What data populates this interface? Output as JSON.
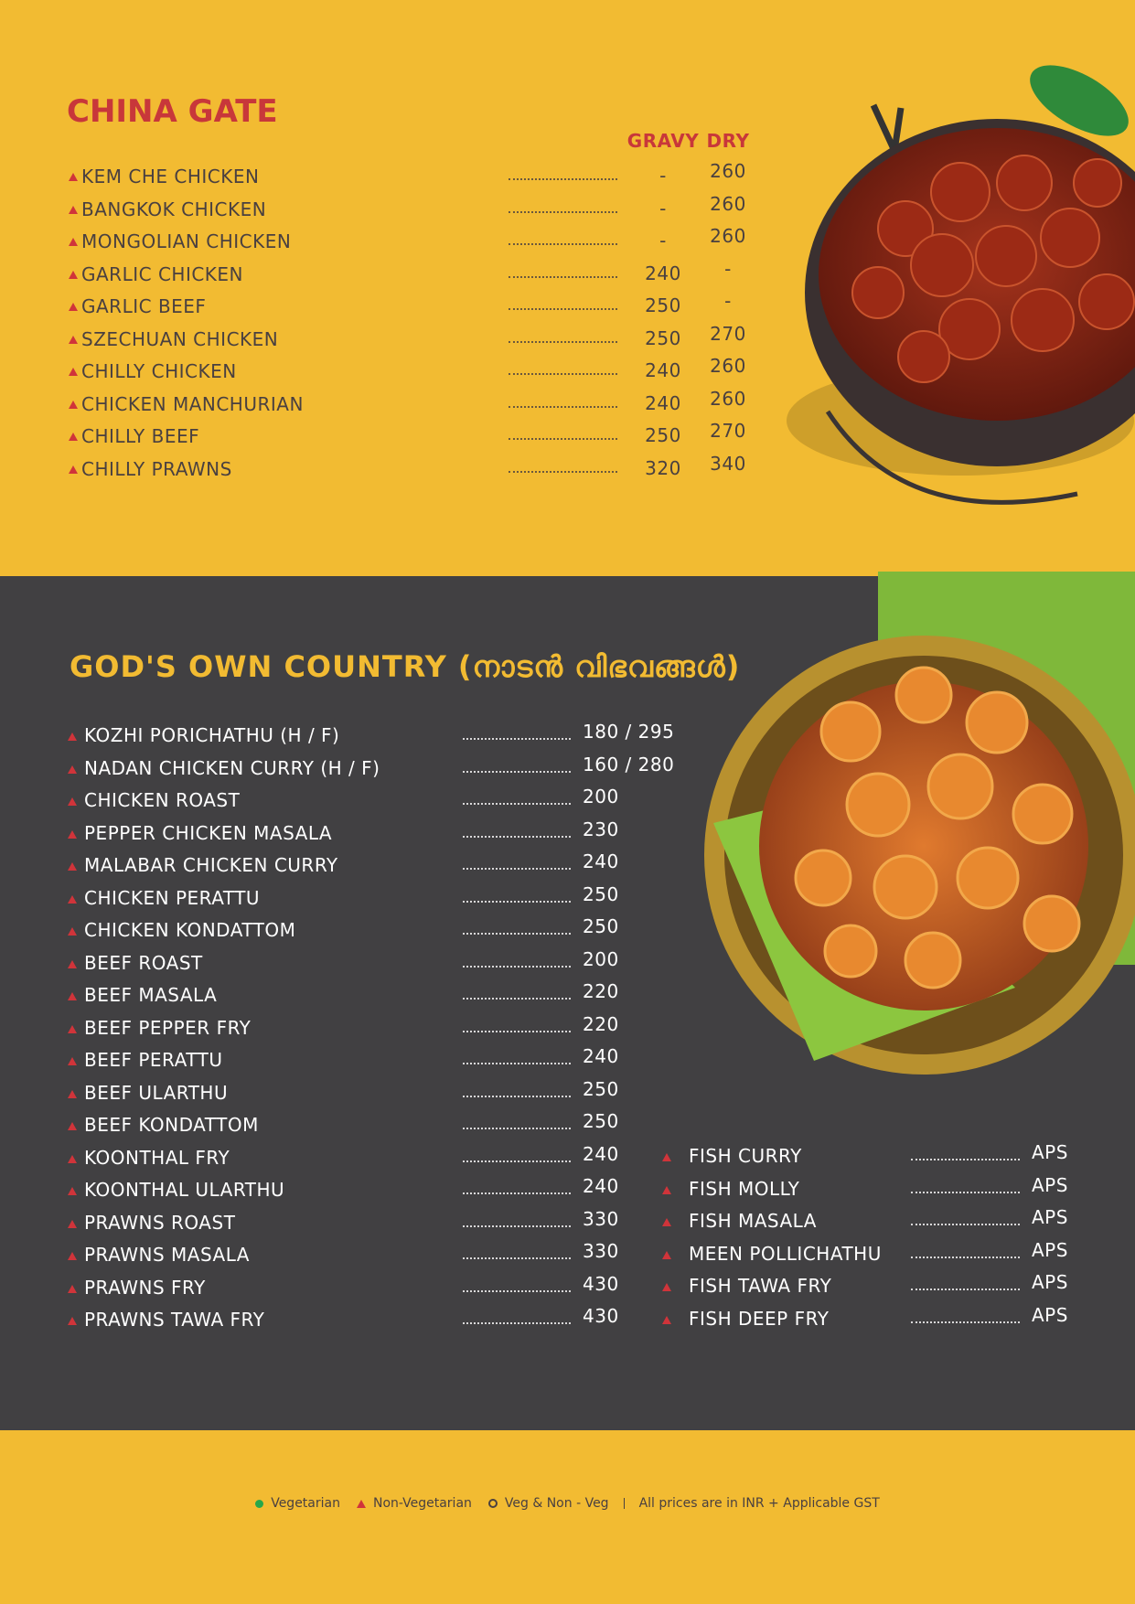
{
  "china_gate": {
    "title": "CHINA GATE",
    "headers": [
      "GRAVY",
      "DRY"
    ],
    "items": [
      {
        "name": "KEM CHE CHICKEN",
        "gravy": "-",
        "dry": "260"
      },
      {
        "name": "BANGKOK CHICKEN",
        "gravy": "-",
        "dry": "260"
      },
      {
        "name": "MONGOLIAN CHICKEN",
        "gravy": "-",
        "dry": "260"
      },
      {
        "name": "GARLIC CHICKEN",
        "gravy": "240",
        "dry": "-"
      },
      {
        "name": "GARLIC BEEF",
        "gravy": "250",
        "dry": "-"
      },
      {
        "name": "SZECHUAN CHICKEN",
        "gravy": "250",
        "dry": "270"
      },
      {
        "name": "CHILLY CHICKEN",
        "gravy": "240",
        "dry": "260"
      },
      {
        "name": "CHICKEN MANCHURIAN",
        "gravy": "240",
        "dry": "260"
      },
      {
        "name": "CHILLY BEEF",
        "gravy": "250",
        "dry": "270"
      },
      {
        "name": "CHILLY PRAWNS",
        "gravy": "320",
        "dry": "340"
      }
    ]
  },
  "gods_own_country": {
    "title": "GOD'S OWN COUNTRY (നാടൻ വിഭവങ്ങൾ)",
    "left_items": [
      {
        "name": "KOZHI PORICHATHU (H / F)",
        "price": "180 / 295"
      },
      {
        "name": "NADAN CHICKEN CURRY (H / F)",
        "price": "160 / 280"
      },
      {
        "name": "CHICKEN ROAST",
        "price": "200"
      },
      {
        "name": "PEPPER CHICKEN MASALA",
        "price": "230"
      },
      {
        "name": "MALABAR CHICKEN CURRY",
        "price": "240"
      },
      {
        "name": "CHICKEN PERATTU",
        "price": "250"
      },
      {
        "name": "CHICKEN KONDATTOM",
        "price": "250"
      },
      {
        "name": "BEEF ROAST",
        "price": "200"
      },
      {
        "name": "BEEF MASALA",
        "price": "220"
      },
      {
        "name": "BEEF PEPPER FRY",
        "price": "220"
      },
      {
        "name": "BEEF PERATTU",
        "price": "240"
      },
      {
        "name": "BEEF ULARTHU",
        "price": "250"
      },
      {
        "name": "BEEF KONDATTOM",
        "price": "250"
      },
      {
        "name": "KOONTHAL FRY",
        "price": "240"
      },
      {
        "name": "KOONTHAL ULARTHU",
        "price": "240"
      },
      {
        "name": "PRAWNS ROAST",
        "price": "330"
      },
      {
        "name": "PRAWNS MASALA",
        "price": "330"
      },
      {
        "name": "PRAWNS FRY",
        "price": "430"
      },
      {
        "name": "PRAWNS TAWA FRY",
        "price": "430"
      }
    ],
    "right_items": [
      {
        "name": "FISH CURRY",
        "price": "APS"
      },
      {
        "name": "FISH MOLLY",
        "price": "APS"
      },
      {
        "name": "FISH MASALA",
        "price": "APS"
      },
      {
        "name": "MEEN POLLICHATHU",
        "price": "APS"
      },
      {
        "name": "FISH TAWA FRY",
        "price": "APS"
      },
      {
        "name": "FISH DEEP FRY",
        "price": "APS"
      }
    ]
  },
  "footer": {
    "veg": "Vegetarian",
    "non_veg": "Non-Vegetarian",
    "mixed": "Veg & Non - Veg",
    "note": "All prices are in INR + Applicable GST"
  }
}
